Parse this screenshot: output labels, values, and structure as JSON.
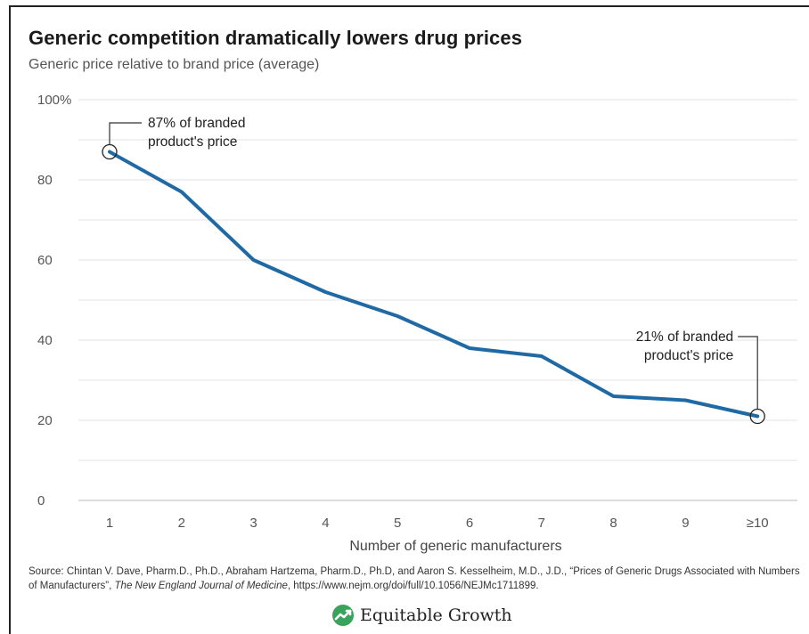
{
  "chart_data": {
    "type": "line",
    "title": "Generic competition dramatically lowers drug prices",
    "subtitle": "Generic price relative to brand price (average)",
    "xlabel": "Number of generic manufacturers",
    "ylabel": "",
    "categories": [
      "1",
      "2",
      "3",
      "4",
      "5",
      "6",
      "7",
      "8",
      "9",
      "≥10"
    ],
    "series": [
      {
        "values": [
          87,
          77,
          60,
          52,
          46,
          38,
          36,
          26,
          25,
          21
        ]
      }
    ],
    "ylim": [
      0,
      100
    ],
    "yticks": [
      0,
      20,
      40,
      60,
      80,
      100
    ],
    "ytick_labels": [
      "0",
      "20",
      "40",
      "60",
      "80",
      "100%"
    ],
    "grid": true,
    "line_color": "#1f6aa5",
    "annotations": [
      {
        "index": 0,
        "line1": "87% of branded",
        "line2": "product's price"
      },
      {
        "index": 9,
        "line1": "21% of branded",
        "line2": "product's price"
      }
    ]
  },
  "source": {
    "prefix": "Source: Chintan V. Dave, Pharm.D., Ph.D., Abraham Hartzema, Pharm.D., Ph.D, and Aaron S. Kesselheim, M.D., J.D., “Prices of Generic Drugs Associated with Numbers of Manufacturers”,",
    "journal": "The New England Journal of Medicine",
    "suffix": ", https://www.nejm.org/doi/full/10.1056/NEJMc1711899."
  },
  "brand": {
    "name": "Equitable Growth",
    "logo_icon": "equitable-growth-logo-icon",
    "logo_color": "#3aa35b"
  }
}
